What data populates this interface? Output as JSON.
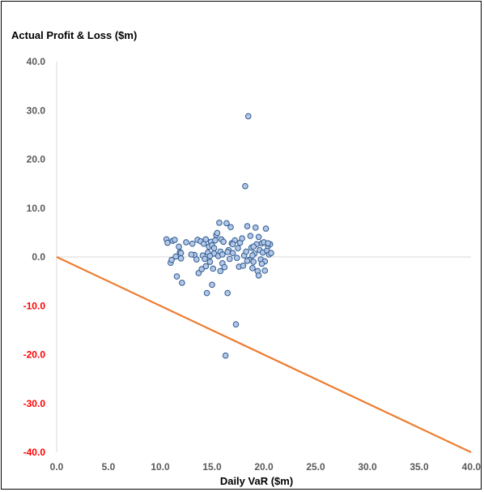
{
  "chart_data": {
    "type": "scatter",
    "title": "Actual Profit & Loss ($m)",
    "xlabel": "Daily VaR ($m)",
    "ylabel": "",
    "xlim": [
      0,
      40
    ],
    "ylim": [
      -40,
      40
    ],
    "x_ticks": [
      "0.0",
      "5.0",
      "10.0",
      "15.0",
      "20.0",
      "25.0",
      "30.0",
      "35.0",
      "40.0"
    ],
    "y_ticks": [
      "40.0",
      "30.0",
      "20.0",
      "10.0",
      "0.0",
      "-10.0",
      "-20.0",
      "-30.0",
      "-40.0"
    ],
    "grid": false,
    "colors": {
      "marker_fill": "#b4c7e7",
      "marker_edge": "#2e5b8f",
      "line": "#ed7d31",
      "positive_tick": "#595959",
      "negative_tick": "#ff0000",
      "axis": "#d9d9d9"
    },
    "series": [
      {
        "type": "scatter",
        "points": [
          [
            10.6,
            3.6
          ],
          [
            10.7,
            2.9
          ],
          [
            11.0,
            -1.2
          ],
          [
            11.1,
            -0.6
          ],
          [
            11.2,
            3.3
          ],
          [
            11.4,
            3.5
          ],
          [
            11.5,
            0.1
          ],
          [
            11.6,
            -4.0
          ],
          [
            11.8,
            2.1
          ],
          [
            11.9,
            1.0
          ],
          [
            12.0,
            -0.3
          ],
          [
            12.1,
            -5.3
          ],
          [
            12.5,
            3.0
          ],
          [
            13.1,
            2.7
          ],
          [
            13.3,
            0.4
          ],
          [
            13.5,
            -0.5
          ],
          [
            13.6,
            3.5
          ],
          [
            13.7,
            -3.3
          ],
          [
            13.9,
            3.2
          ],
          [
            14.0,
            -2.5
          ],
          [
            14.1,
            0.3
          ],
          [
            14.2,
            2.7
          ],
          [
            14.3,
            -0.4
          ],
          [
            14.4,
            -1.9
          ],
          [
            14.4,
            3.6
          ],
          [
            14.5,
            -7.4
          ],
          [
            14.6,
            0.9
          ],
          [
            14.7,
            2.1
          ],
          [
            14.8,
            -1.0
          ],
          [
            14.9,
            3.1
          ],
          [
            15.0,
            2.4
          ],
          [
            15.0,
            -5.7
          ],
          [
            15.1,
            -2.4
          ],
          [
            15.2,
            0.7
          ],
          [
            15.3,
            3.4
          ],
          [
            15.4,
            4.5
          ],
          [
            15.5,
            4.9
          ],
          [
            15.6,
            0.2
          ],
          [
            15.7,
            7.0
          ],
          [
            15.8,
            1.1
          ],
          [
            15.8,
            -2.9
          ],
          [
            15.9,
            3.6
          ],
          [
            16.0,
            -1.3
          ],
          [
            16.1,
            3.1
          ],
          [
            16.2,
            -2.1
          ],
          [
            16.3,
            -20.2
          ],
          [
            16.4,
            6.9
          ],
          [
            16.5,
            -7.4
          ],
          [
            16.6,
            1.4
          ],
          [
            16.7,
            -0.4
          ],
          [
            16.8,
            6.1
          ],
          [
            16.9,
            2.8
          ],
          [
            17.0,
            0.8
          ],
          [
            17.2,
            3.4
          ],
          [
            17.3,
            -13.8
          ],
          [
            17.4,
            -0.2
          ],
          [
            17.5,
            1.8
          ],
          [
            17.6,
            -2.0
          ],
          [
            17.7,
            2.9
          ],
          [
            17.9,
            3.8
          ],
          [
            18.0,
            -1.8
          ],
          [
            18.1,
            0.3
          ],
          [
            18.2,
            14.5
          ],
          [
            18.3,
            1.1
          ],
          [
            18.4,
            6.3
          ],
          [
            18.5,
            28.8
          ],
          [
            18.6,
            -0.6
          ],
          [
            18.7,
            4.3
          ],
          [
            18.8,
            1.9
          ],
          [
            18.9,
            -2.3
          ],
          [
            19.0,
            -1.0
          ],
          [
            19.1,
            0.7
          ],
          [
            19.2,
            6.0
          ],
          [
            19.3,
            2.6
          ],
          [
            19.4,
            -2.9
          ],
          [
            19.5,
            -3.8
          ],
          [
            19.5,
            4.1
          ],
          [
            19.6,
            1.4
          ],
          [
            19.7,
            -0.5
          ],
          [
            19.8,
            2.8
          ],
          [
            19.9,
            0.9
          ],
          [
            20.0,
            3.0
          ],
          [
            20.1,
            -0.9
          ],
          [
            20.1,
            -2.8
          ],
          [
            20.2,
            5.8
          ],
          [
            20.3,
            1.3
          ],
          [
            20.4,
            2.2
          ],
          [
            20.5,
            0.5
          ],
          [
            20.6,
            2.6
          ],
          [
            20.7,
            0.8
          ],
          [
            19.0,
            2.1
          ],
          [
            18.4,
            -0.8
          ],
          [
            16.0,
            0.5
          ],
          [
            14.8,
            0.2
          ],
          [
            13.0,
            0.5
          ],
          [
            12.0,
            0.8
          ],
          [
            17.0,
            2.6
          ],
          [
            15.2,
            1.8
          ],
          [
            16.5,
            1.0
          ],
          [
            18.9,
            0.3
          ],
          [
            19.8,
            -1.4
          ],
          [
            20.4,
            2.8
          ]
        ]
      },
      {
        "type": "line",
        "points": [
          [
            0,
            0
          ],
          [
            40,
            -40
          ]
        ]
      }
    ]
  }
}
